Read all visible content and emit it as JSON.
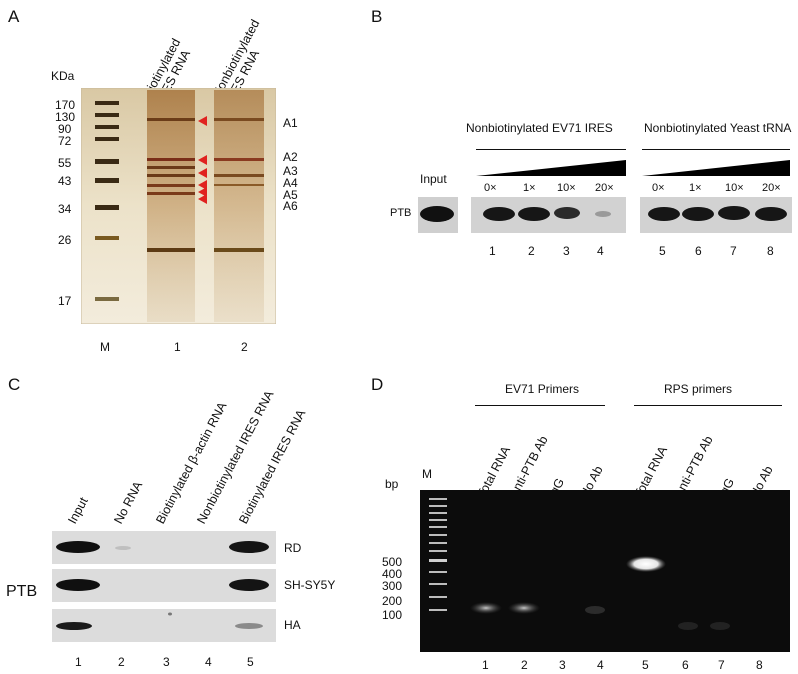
{
  "panelA": {
    "letter": "A",
    "unit": "KDa",
    "markers": [
      "170",
      "130",
      "90",
      "72",
      "55",
      "43",
      "34",
      "26",
      "17"
    ],
    "lanes": [
      "M",
      "1",
      "2"
    ],
    "lane_headers": [
      [
        "Biotinylated",
        "IRES RNA"
      ],
      [
        "Nonbiotinylated",
        "IRES RNA"
      ]
    ],
    "bands": [
      "A1",
      "A2",
      "A3",
      "A4",
      "A5",
      "A6"
    ]
  },
  "panelB": {
    "letter": "B",
    "group1": "Nonbiotinylated EV71 IRES",
    "group2": "Nonbiotinylated Yeast tRNA",
    "input": "Input",
    "protein": "PTB",
    "ratios": [
      "0×",
      "1×",
      "10×",
      "20×"
    ],
    "lanes": [
      "1",
      "2",
      "3",
      "4",
      "5",
      "6",
      "7",
      "8"
    ]
  },
  "panelC": {
    "letter": "C",
    "headers": [
      "Input",
      "No RNA",
      "Biotinylated β-actin RNA",
      "Nonbiotinylated IRES RNA",
      "Biotinylated IRES RNA"
    ],
    "rows": [
      "RD",
      "SH-SY5Y",
      "HA"
    ],
    "protein": "PTB",
    "lanes": [
      "1",
      "2",
      "3",
      "4",
      "5"
    ]
  },
  "panelD": {
    "letter": "D",
    "group1": "EV71 Primers",
    "group2": "RPS primers",
    "marker": "M",
    "unit": "bp",
    "sizes": [
      "500",
      "400",
      "300",
      "200",
      "100"
    ],
    "headers": [
      "Total RNA",
      "Anti-PTB Ab",
      "IgG",
      "No Ab",
      "Total RNA",
      "Anti-PTB Ab",
      "IgG",
      "No Ab"
    ],
    "lanes": [
      "1",
      "2",
      "3",
      "4",
      "5",
      "6",
      "7",
      "8"
    ]
  }
}
